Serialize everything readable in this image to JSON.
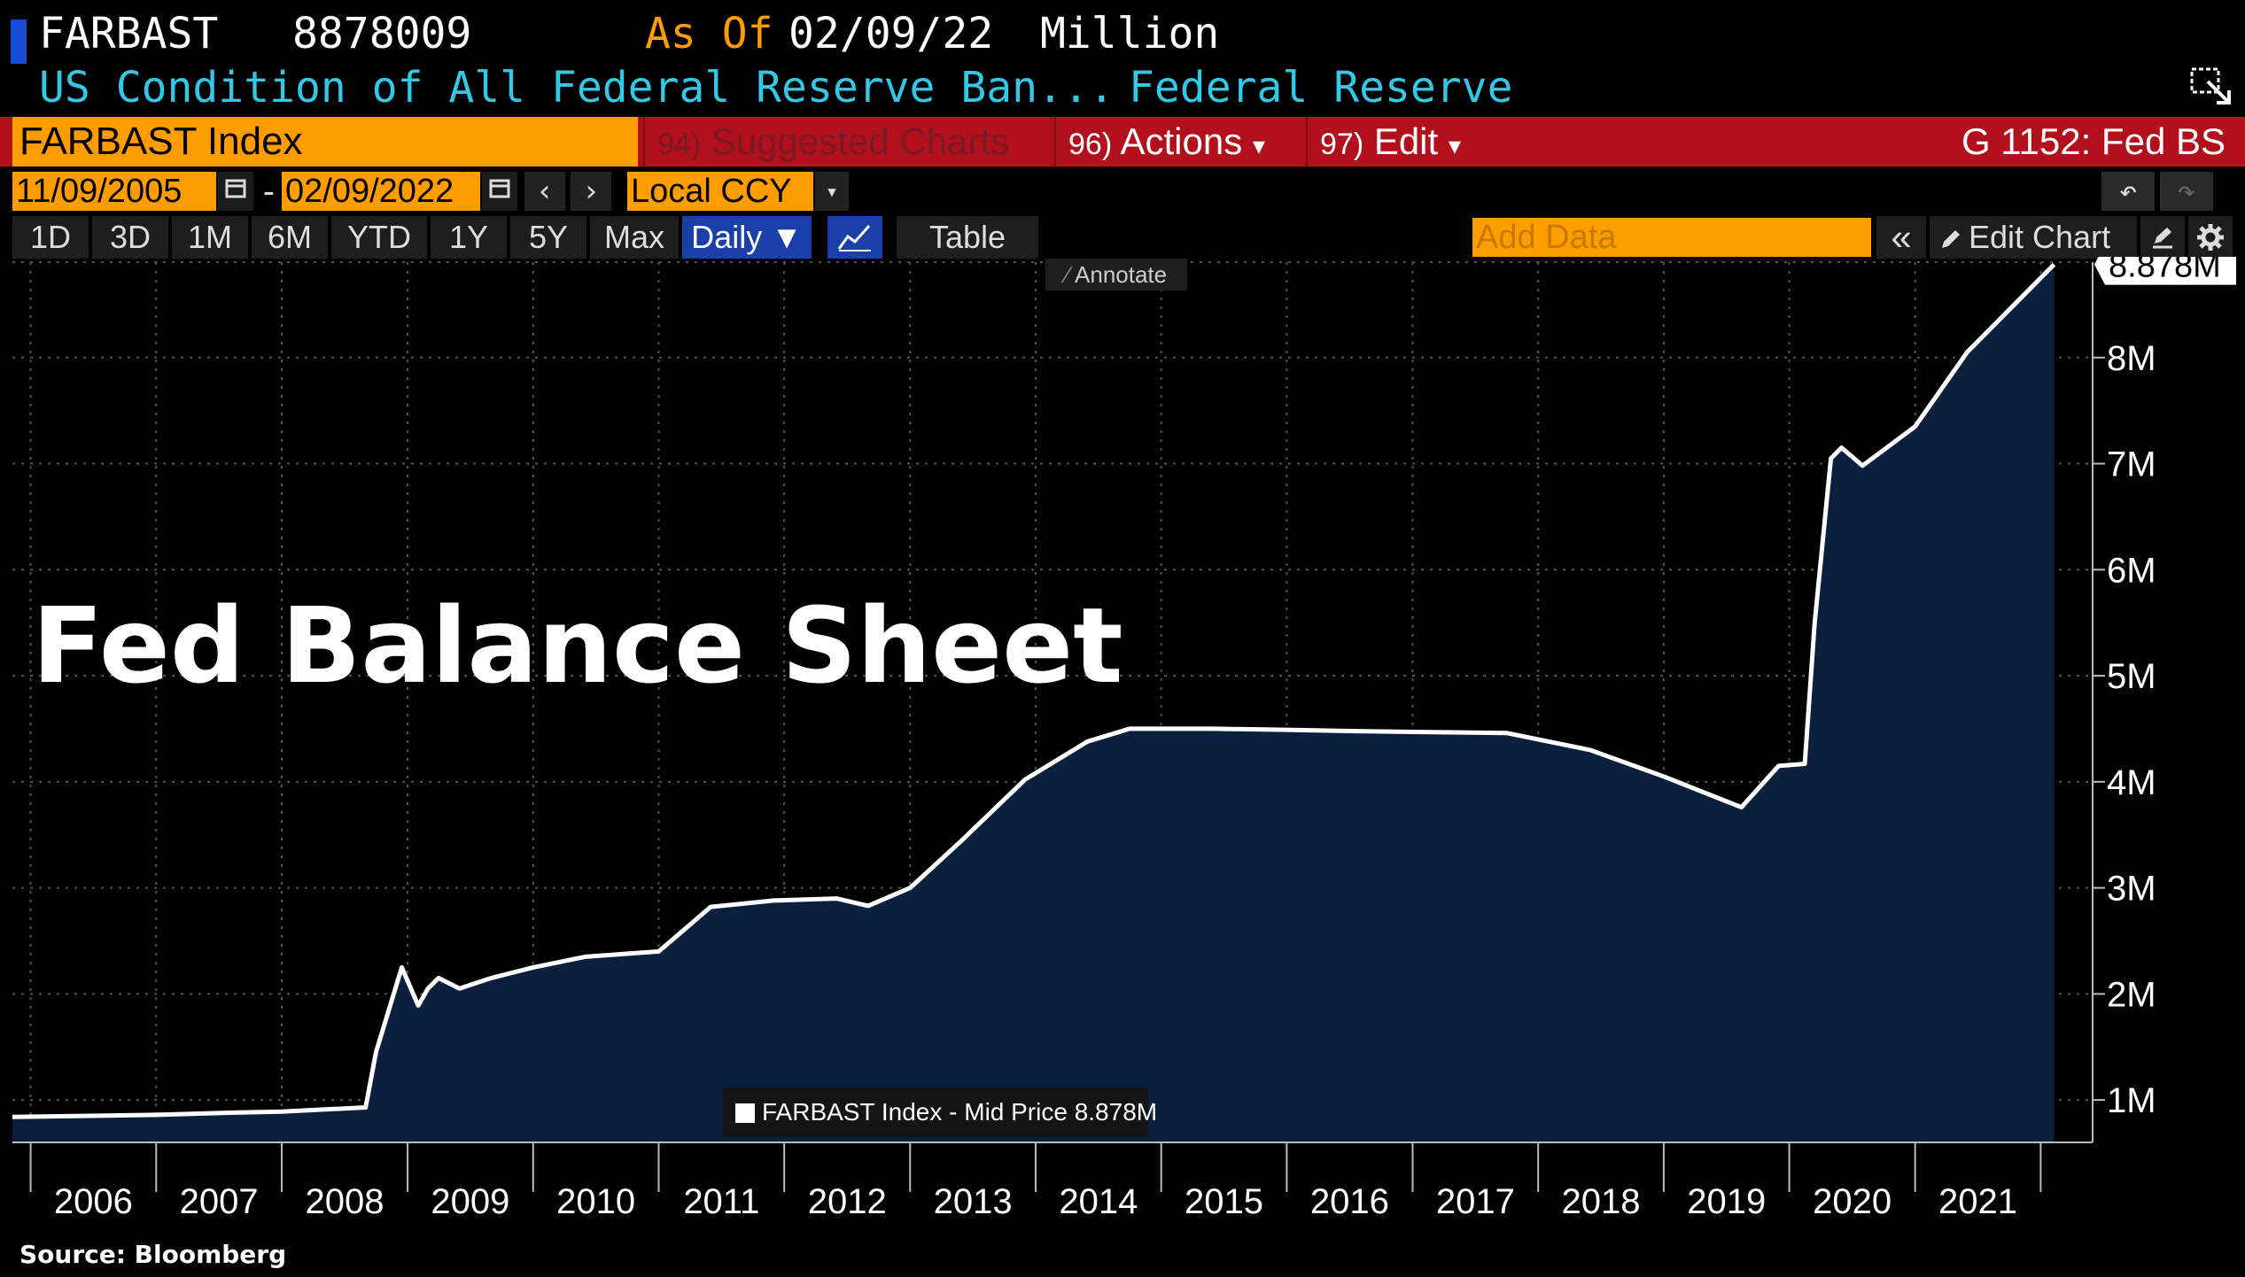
{
  "header": {
    "ticker": "FARBAST",
    "value": "8878009",
    "as_of_label": "As Of",
    "as_of_date": "02/09/22",
    "unit": "Million",
    "description": "US Condition of All Federal Reserve Ban...",
    "source_name": "Federal Reserve"
  },
  "toolbar": {
    "security": "FARBAST Index",
    "suggested_num": "94)",
    "suggested": "Suggested Charts",
    "actions_num": "96)",
    "actions": "Actions",
    "edit_num": "97)",
    "edit": "Edit",
    "page_id": "G 1152: Fed BS",
    "dropdown_arrow": "▾"
  },
  "range": {
    "start": "11/09/2005",
    "end": "02/09/2022",
    "sep": "-",
    "currency": "Local CCY",
    "prev": "‹",
    "next": "›",
    "undo": "↶",
    "redo": "↷"
  },
  "periods": [
    "1D",
    "3D",
    "1M",
    "6M",
    "YTD",
    "1Y",
    "5Y",
    "Max"
  ],
  "frequency": "Daily ▼",
  "table_label": "Table",
  "add_data_placeholder": "Add Data",
  "collapse": "«",
  "edit_chart": "Edit Chart",
  "annotate": "Annotate",
  "overlay_title": "Fed Balance Sheet",
  "legend_label": "FARBAST Index - Mid Price 8.878M",
  "last_value_label": "8.878M",
  "source": "Source: Bloomberg",
  "colors": {
    "accent_orange": "#ff9c00",
    "cyan": "#32c8e6",
    "bar_red": "#b3101e",
    "area_fill": "#0b1f3f",
    "line": "#ffffff"
  },
  "icons": [
    "popout-icon",
    "calendar-icon",
    "chevron-left-icon",
    "chevron-right-icon",
    "undo-icon",
    "redo-icon",
    "line-chart-icon",
    "double-chevron-left-icon",
    "pencil-icon",
    "edit-icon",
    "gear-icon"
  ],
  "chart_data": {
    "type": "area",
    "title": "",
    "series": [
      {
        "x": [
          "2005-11-09",
          "2006-06-01",
          "2007-01-01",
          "2007-08-01",
          "2008-01-01",
          "2008-09-01",
          "2008-10-01",
          "2008-12-15",
          "2009-02-01",
          "2009-03-01",
          "2009-04-01",
          "2009-06-01",
          "2009-09-01",
          "2010-01-01",
          "2010-06-01",
          "2011-01-01",
          "2011-06-01",
          "2011-12-01",
          "2012-06-01",
          "2012-09-01",
          "2013-01-01",
          "2013-06-01",
          "2013-12-01",
          "2014-06-01",
          "2014-10-01",
          "2015-06-01",
          "2016-01-01",
          "2016-06-01",
          "2017-01-01",
          "2017-10-01",
          "2018-06-01",
          "2019-01-01",
          "2019-08-15",
          "2019-12-01",
          "2020-02-15",
          "2020-03-15",
          "2020-05-01",
          "2020-06-01",
          "2020-08-01",
          "2021-01-01",
          "2021-06-01",
          "2022-02-09"
        ],
        "values": [
          0.84,
          0.85,
          0.86,
          0.88,
          0.89,
          0.93,
          1.45,
          2.25,
          1.89,
          2.05,
          2.15,
          2.05,
          2.15,
          2.25,
          2.35,
          2.4,
          2.82,
          2.88,
          2.9,
          2.83,
          3.0,
          3.45,
          4.02,
          4.38,
          4.5,
          4.5,
          4.49,
          4.48,
          4.47,
          4.46,
          4.3,
          4.05,
          3.76,
          4.15,
          4.17,
          5.5,
          7.05,
          7.15,
          6.98,
          7.35,
          8.05,
          8.878
        ]
      }
    ],
    "xlabel": "",
    "ylabel": "",
    "ylim": [
      0.6,
      8.9
    ],
    "xlim": [
      "2005-11-09",
      "2022-06-01"
    ],
    "ytick_values": [
      1,
      2,
      3,
      4,
      5,
      6,
      7,
      8
    ],
    "ytick_labels": [
      "1M",
      "2M",
      "3M",
      "4M",
      "5M",
      "6M",
      "7M",
      "8M"
    ],
    "xtick_labels": [
      "2006",
      "2007",
      "2008",
      "2009",
      "2010",
      "2011",
      "2012",
      "2013",
      "2014",
      "2015",
      "2016",
      "2017",
      "2018",
      "2019",
      "2020",
      "2021"
    ],
    "grid": true
  }
}
